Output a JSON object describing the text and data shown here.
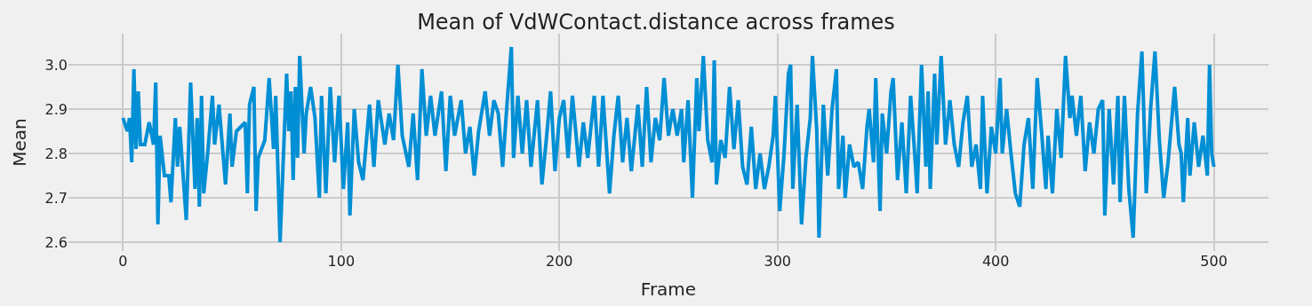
{
  "chart_data": {
    "type": "line",
    "title": "Mean of VdWContact.distance across frames",
    "xlabel": "Frame",
    "ylabel": "Mean",
    "xlim": [
      -25,
      525
    ],
    "xticks": [
      0,
      100,
      200,
      300,
      400,
      500
    ],
    "ylim": [
      2.58,
      3.07
    ],
    "yticks": [
      2.6,
      2.7,
      2.8,
      2.9,
      {
        "value": 3.0,
        "label": "3.0"
      }
    ],
    "grid": true,
    "series": [
      {
        "color": "#008fd5",
        "x": [
          0,
          2,
          3,
          4,
          5,
          6,
          7,
          8,
          10,
          12,
          14,
          15,
          16,
          17,
          19,
          21,
          22,
          24,
          25,
          26,
          27,
          29,
          31,
          33,
          34,
          35,
          36,
          37,
          39,
          41,
          42,
          44,
          47,
          49,
          50,
          52,
          56,
          57,
          58,
          60,
          61,
          62,
          65,
          67,
          69,
          70,
          72,
          75,
          76,
          77,
          78,
          79,
          80,
          81,
          83,
          84,
          86,
          88,
          90,
          91,
          93,
          95,
          97,
          99,
          101,
          103,
          104,
          106,
          108,
          110,
          113,
          115,
          117,
          120,
          122,
          124,
          126,
          128,
          131,
          133,
          135,
          137,
          139,
          141,
          143,
          146,
          148,
          150,
          152,
          155,
          157,
          159,
          161,
          163,
          166,
          168,
          170,
          172,
          174,
          176,
          178,
          179,
          181,
          183,
          185,
          187,
          190,
          192,
          194,
          196,
          198,
          200,
          202,
          204,
          206,
          209,
          211,
          213,
          216,
          218,
          220,
          223,
          225,
          227,
          229,
          231,
          233,
          236,
          238,
          240,
          242,
          244,
          246,
          248,
          250,
          252,
          254,
          256,
          257,
          259,
          261,
          263,
          264,
          266,
          268,
          270,
          271,
          272,
          274,
          276,
          278,
          280,
          282,
          284,
          286,
          288,
          290,
          292,
          294,
          296,
          298,
          299,
          301,
          303,
          305,
          306,
          307,
          309,
          311,
          313,
          315,
          316,
          318,
          319,
          321,
          323,
          325,
          327,
          328,
          330,
          331,
          333,
          335,
          337,
          339,
          341,
          342,
          344,
          345,
          347,
          348,
          350,
          352,
          353,
          355,
          357,
          359,
          361,
          363,
          364,
          366,
          368,
          369,
          370,
          372,
          373,
          375,
          377,
          379,
          381,
          383,
          385,
          387,
          389,
          391,
          393,
          394,
          396,
          398,
          400,
          402,
          403,
          405,
          407,
          409,
          411,
          413,
          415,
          417,
          419,
          421,
          423,
          424,
          426,
          428,
          430,
          432,
          434,
          435,
          437,
          439,
          441,
          443,
          445,
          447,
          449,
          450,
          452,
          454,
          456,
          457,
          459,
          461,
          463,
          465,
          467,
          469,
          471,
          473,
          475,
          477,
          479,
          482,
          484,
          485,
          486,
          488,
          489,
          491,
          493,
          495,
          497,
          498,
          499,
          500
        ],
        "values": [
          2.88,
          2.85,
          2.88,
          2.78,
          2.99,
          2.81,
          2.94,
          2.82,
          2.82,
          2.87,
          2.82,
          2.96,
          2.64,
          2.84,
          2.75,
          2.75,
          2.69,
          2.88,
          2.77,
          2.86,
          2.79,
          2.65,
          2.96,
          2.72,
          2.88,
          2.68,
          2.93,
          2.71,
          2.81,
          2.93,
          2.82,
          2.91,
          2.73,
          2.89,
          2.77,
          2.85,
          2.87,
          2.71,
          2.91,
          2.95,
          2.67,
          2.79,
          2.83,
          2.97,
          2.81,
          2.93,
          2.6,
          2.98,
          2.85,
          2.94,
          2.74,
          2.95,
          2.79,
          3.02,
          2.8,
          2.89,
          2.95,
          2.88,
          2.7,
          2.93,
          2.71,
          2.95,
          2.78,
          2.93,
          2.72,
          2.87,
          2.66,
          2.9,
          2.78,
          2.74,
          2.91,
          2.77,
          2.92,
          2.82,
          2.89,
          2.83,
          3.0,
          2.84,
          2.77,
          2.89,
          2.74,
          2.99,
          2.84,
          2.93,
          2.84,
          2.94,
          2.76,
          2.93,
          2.84,
          2.92,
          2.8,
          2.86,
          2.75,
          2.85,
          2.94,
          2.84,
          2.92,
          2.89,
          2.77,
          2.91,
          3.04,
          2.79,
          2.93,
          2.8,
          2.92,
          2.77,
          2.92,
          2.73,
          2.83,
          2.94,
          2.76,
          2.88,
          2.92,
          2.79,
          2.93,
          2.77,
          2.87,
          2.79,
          2.93,
          2.77,
          2.93,
          2.71,
          2.84,
          2.93,
          2.78,
          2.88,
          2.76,
          2.91,
          2.77,
          2.95,
          2.78,
          2.88,
          2.83,
          2.97,
          2.84,
          2.9,
          2.84,
          2.9,
          2.78,
          2.92,
          2.7,
          2.97,
          2.85,
          3.02,
          2.83,
          2.78,
          3.01,
          2.73,
          2.83,
          2.79,
          2.95,
          2.81,
          2.92,
          2.77,
          2.73,
          2.86,
          2.72,
          2.8,
          2.72,
          2.77,
          2.84,
          2.93,
          2.67,
          2.8,
          2.98,
          3.0,
          2.72,
          2.91,
          2.64,
          2.79,
          2.88,
          3.02,
          2.85,
          2.61,
          2.91,
          2.75,
          2.9,
          2.99,
          2.72,
          2.84,
          2.7,
          2.82,
          2.77,
          2.78,
          2.72,
          2.86,
          2.9,
          2.78,
          2.97,
          2.67,
          2.89,
          2.8,
          2.94,
          2.97,
          2.74,
          2.87,
          2.71,
          2.93,
          2.79,
          2.71,
          3.0,
          2.77,
          2.94,
          2.72,
          2.98,
          2.82,
          3.02,
          2.82,
          2.92,
          2.82,
          2.77,
          2.87,
          2.93,
          2.77,
          2.82,
          2.72,
          2.93,
          2.71,
          2.86,
          2.8,
          2.97,
          2.8,
          2.9,
          2.8,
          2.71,
          2.68,
          2.82,
          2.88,
          2.72,
          2.97,
          2.85,
          2.72,
          2.84,
          2.71,
          2.9,
          2.79,
          3.02,
          2.88,
          2.93,
          2.84,
          2.93,
          2.76,
          2.87,
          2.8,
          2.9,
          2.92,
          2.66,
          2.9,
          2.73,
          2.93,
          2.69,
          2.93,
          2.72,
          2.61,
          2.89,
          3.03,
          2.71,
          2.9,
          3.03,
          2.83,
          2.7,
          2.78,
          2.95,
          2.82,
          2.8,
          2.69,
          2.88,
          2.75,
          2.87,
          2.77,
          2.84,
          2.75,
          3.0,
          2.8,
          2.77
        ]
      }
    ]
  }
}
